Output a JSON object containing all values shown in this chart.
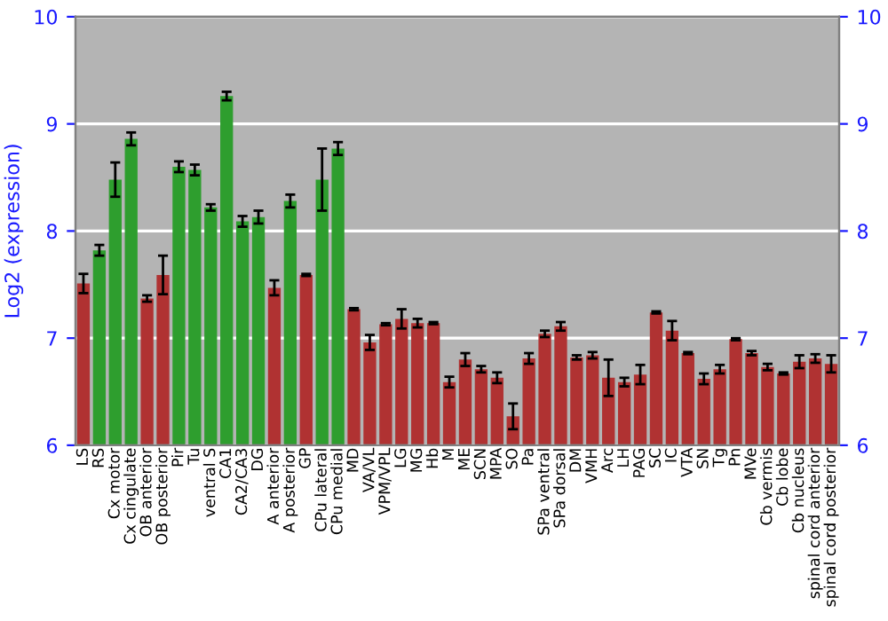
{
  "chart_data": {
    "type": "bar",
    "ylabel": "Log2 (expression)",
    "categories": [
      "LS",
      "RS",
      "Cx motor",
      "Cx cingulate",
      "OB anterior",
      "OB posterior",
      "Pir",
      "Tu",
      "ventral S",
      "CA1",
      "CA2/CA3",
      "DG",
      "A anterior",
      "A posterior",
      "GP",
      "CPu lateral",
      "CPu medial",
      "MD",
      "VA/VL",
      "VPM/VPL",
      "LG",
      "MG",
      "Hb",
      "M",
      "ME",
      "SCN",
      "MPA",
      "SO",
      "Pa",
      "SPa ventral",
      "SPa dorsal",
      "DM",
      "VMH",
      "Arc",
      "LH",
      "PAG",
      "SC",
      "IC",
      "VTA",
      "SN",
      "Tg",
      "Pn",
      "MVe",
      "Cb vermis",
      "Cb lobe",
      "Cb nucleus",
      "spinal cord anterior",
      "spinal cord posterior"
    ],
    "values": [
      7.51,
      7.82,
      8.48,
      8.86,
      7.37,
      7.59,
      8.6,
      8.57,
      8.22,
      9.26,
      8.09,
      8.13,
      7.47,
      8.28,
      7.59,
      8.48,
      8.77,
      7.27,
      6.96,
      7.13,
      7.18,
      7.14,
      7.14,
      6.59,
      6.8,
      6.71,
      6.63,
      6.27,
      6.81,
      7.04,
      7.11,
      6.82,
      6.84,
      6.63,
      6.59,
      6.66,
      7.24,
      7.07,
      6.86,
      6.62,
      6.71,
      6.99,
      6.86,
      6.73,
      6.67,
      6.78,
      6.81,
      6.76
    ],
    "errors": [
      0.09,
      0.05,
      0.16,
      0.06,
      0.03,
      0.18,
      0.05,
      0.05,
      0.03,
      0.04,
      0.05,
      0.06,
      0.07,
      0.06,
      0.01,
      0.29,
      0.06,
      0.01,
      0.07,
      0.01,
      0.09,
      0.04,
      0.01,
      0.05,
      0.06,
      0.03,
      0.05,
      0.12,
      0.05,
      0.03,
      0.04,
      0.02,
      0.03,
      0.17,
      0.04,
      0.09,
      0.01,
      0.09,
      0.01,
      0.05,
      0.04,
      0.01,
      0.02,
      0.03,
      0.01,
      0.06,
      0.04,
      0.08
    ],
    "colors": [
      "#b03232",
      "#2e9e2e",
      "#2e9e2e",
      "#2e9e2e",
      "#b03232",
      "#b03232",
      "#2e9e2e",
      "#2e9e2e",
      "#2e9e2e",
      "#2e9e2e",
      "#2e9e2e",
      "#2e9e2e",
      "#b03232",
      "#2e9e2e",
      "#b03232",
      "#2e9e2e",
      "#2e9e2e",
      "#b03232",
      "#b03232",
      "#b03232",
      "#b03232",
      "#b03232",
      "#b03232",
      "#b03232",
      "#b03232",
      "#b03232",
      "#b03232",
      "#b03232",
      "#b03232",
      "#b03232",
      "#b03232",
      "#b03232",
      "#b03232",
      "#b03232",
      "#b03232",
      "#b03232",
      "#b03232",
      "#b03232",
      "#b03232",
      "#b03232",
      "#b03232",
      "#b03232",
      "#b03232",
      "#b03232",
      "#b03232",
      "#b03232",
      "#b03232",
      "#b03232"
    ],
    "ylim": [
      6,
      10
    ],
    "yticks": [
      6,
      7,
      8,
      9,
      10
    ],
    "y2lim": [
      6,
      10
    ],
    "y2ticks": [
      6,
      7,
      8,
      9,
      10
    ],
    "grid": "y"
  }
}
